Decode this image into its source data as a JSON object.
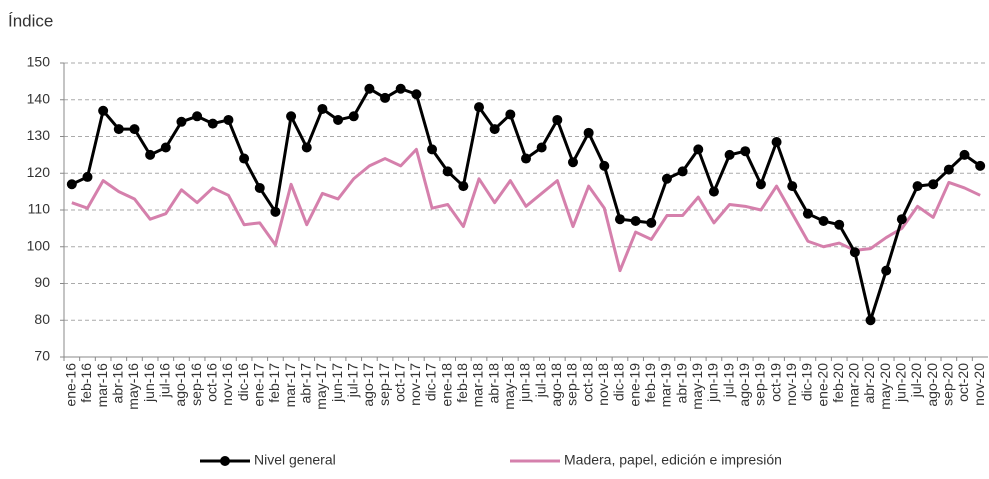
{
  "chart_data": {
    "type": "line",
    "y_label": "Índice",
    "categories": [
      "ene-16",
      "feb-16",
      "mar-16",
      "abr-16",
      "may-16",
      "jun-16",
      "jul-16",
      "ago-16",
      "sep-16",
      "oct-16",
      "nov-16",
      "dic-16",
      "ene-17",
      "feb-17",
      "mar-17",
      "abr-17",
      "may-17",
      "jun-17",
      "jul-17",
      "ago-17",
      "sep-17",
      "oct-17",
      "nov-17",
      "dic-17",
      "ene-18",
      "feb-18",
      "mar-18",
      "abr-18",
      "may-18",
      "jun-18",
      "jul-18",
      "ago-18",
      "sep-18",
      "oct-18",
      "nov-18",
      "dic-18",
      "ene-19",
      "feb-19",
      "mar-19",
      "abr-19",
      "may-19",
      "jun-19",
      "jul-19",
      "ago-19",
      "sep-19",
      "oct-19",
      "nov-19",
      "dic-19",
      "ene-20",
      "feb-20",
      "mar-20",
      "abr-20",
      "may-20",
      "jun-20",
      "jul-20",
      "ago-20",
      "sep-20",
      "oct-20",
      "nov-20"
    ],
    "series": [
      {
        "name": "Nivel general",
        "color": "#000000",
        "markers": true,
        "values": [
          117,
          119,
          137,
          132,
          132,
          125,
          127,
          134,
          135.5,
          133.5,
          134.5,
          124,
          116,
          109.5,
          135.5,
          127,
          137.5,
          134.5,
          135.5,
          143,
          140.5,
          143,
          141.5,
          126.5,
          120.5,
          116.5,
          138,
          132,
          136,
          124,
          127,
          134.5,
          123,
          131,
          122,
          107.5,
          107,
          106.5,
          118.5,
          120.5,
          126.5,
          115,
          125,
          126,
          117,
          128.5,
          116.5,
          109,
          107,
          106,
          98.5,
          80,
          93.5,
          107.5,
          116.5,
          117,
          121,
          125,
          122
        ]
      },
      {
        "name": "Madera, papel, edición e impresión",
        "color": "#d580ac",
        "markers": false,
        "values": [
          112,
          110.5,
          118,
          115,
          113,
          107.5,
          109,
          115.5,
          112,
          116,
          114,
          106,
          106.5,
          100.5,
          117,
          106,
          114.5,
          113,
          118.5,
          122,
          124,
          122,
          126.5,
          110.5,
          111.5,
          105.5,
          118.5,
          112,
          118,
          111,
          114.5,
          118,
          105.5,
          116.5,
          110.5,
          93.5,
          104,
          102,
          108.5,
          108.5,
          113.5,
          106.5,
          111.5,
          111,
          110,
          116.5,
          109,
          101.5,
          100,
          101,
          99,
          99.5,
          102.5,
          105,
          111,
          108,
          117.5,
          116,
          114
        ]
      }
    ],
    "ylim": [
      70,
      150
    ],
    "yticks": [
      70,
      80,
      90,
      100,
      110,
      120,
      130,
      140,
      150
    ],
    "grid": true
  }
}
